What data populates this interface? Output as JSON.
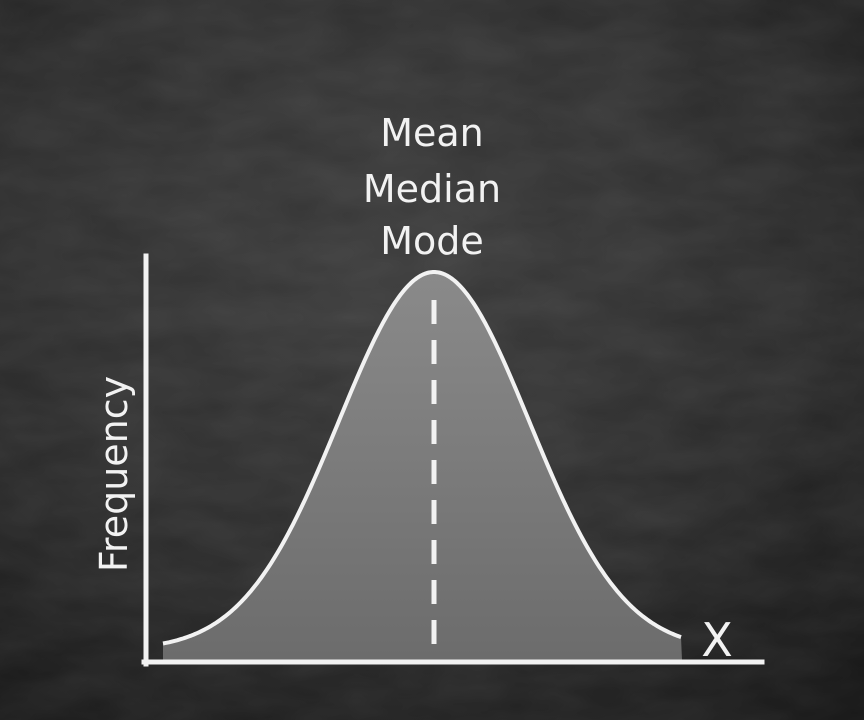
{
  "diagram": {
    "center_labels": [
      "Mean",
      "Median",
      "Mode"
    ],
    "y_axis_label": "Frequency",
    "x_axis_label": "X",
    "curve": "normal distribution (bell curve)",
    "center_marker": "dashed vertical line at peak"
  },
  "colors": {
    "background": "#2a2a2a",
    "curve_fill": "#7a7a7a",
    "line": "#f2f2f2",
    "text": "#f2f2f2"
  }
}
